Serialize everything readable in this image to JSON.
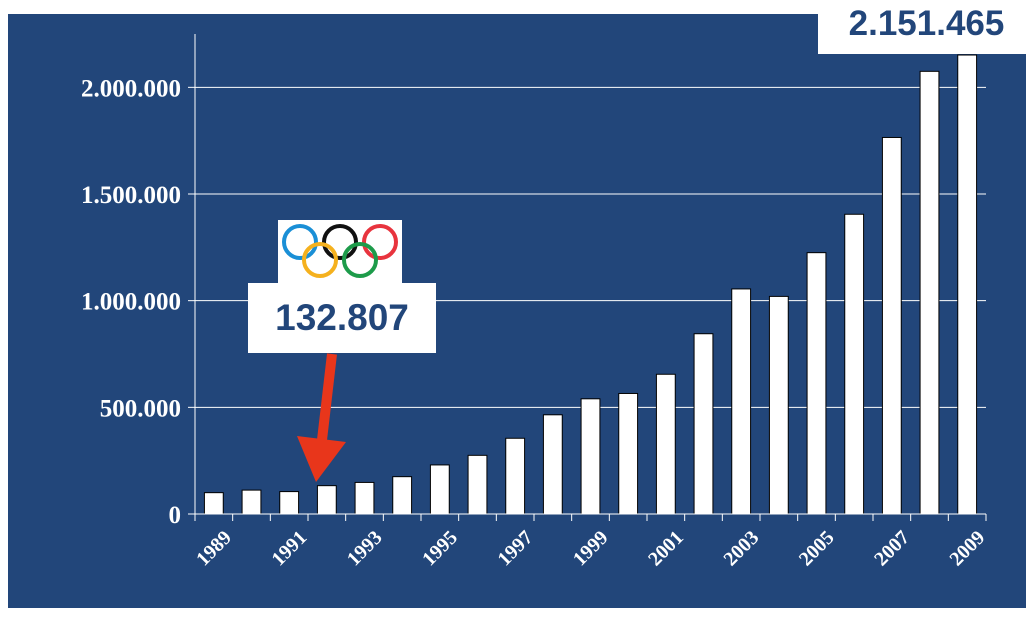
{
  "chart_data": {
    "type": "bar",
    "categories": [
      "1989",
      "1990",
      "1991",
      "1992",
      "1993",
      "1994",
      "1995",
      "1996",
      "1997",
      "1998",
      "1999",
      "2000",
      "2001",
      "2002",
      "2003",
      "2004",
      "2005",
      "2006",
      "2007",
      "2008",
      "2009"
    ],
    "values": [
      100000,
      112000,
      105000,
      132807,
      148000,
      175000,
      230000,
      275000,
      355000,
      465000,
      540000,
      565000,
      655000,
      845000,
      1055000,
      1020000,
      1225000,
      1405000,
      1765000,
      2075000,
      2151465
    ],
    "x_tick_labels": [
      "1989",
      "1991",
      "1993",
      "1995",
      "1997",
      "1999",
      "2001",
      "2003",
      "2005",
      "2007",
      "2009"
    ],
    "y_ticks": [
      "0",
      "500.000",
      "1.000.000",
      "1.500.000",
      "2.000.000"
    ],
    "y_tick_values": [
      0,
      500000,
      1000000,
      1500000,
      2000000
    ],
    "ylim": [
      0,
      2250000
    ],
    "grid": true,
    "title": "",
    "xlabel": "",
    "ylabel": "",
    "annotations": {
      "max_value_label": "2.151.465",
      "olympics_value_label": "132.807",
      "olympics_category": "1992"
    }
  },
  "colors": {
    "background": "#22467a",
    "bars": "#ffffff",
    "arrow": "#e8361b",
    "grid": "#ffffff"
  },
  "icons": [
    "olympic-rings-icon"
  ]
}
